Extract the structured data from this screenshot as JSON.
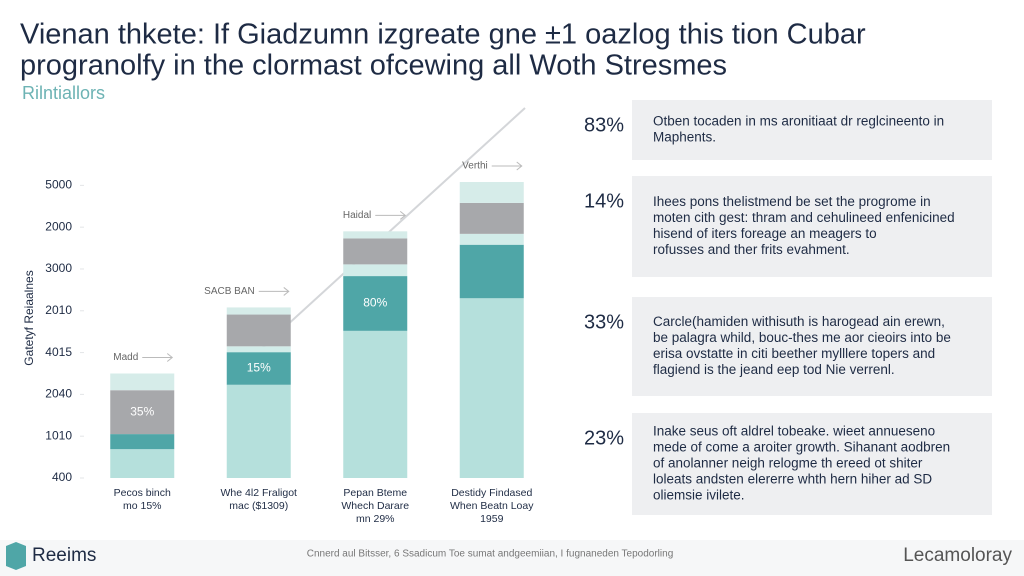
{
  "header": {
    "title": [
      "Vienan thkete: If Giadzumn izgreate gne ±1 oazlog this tion Cubar",
      "progranolfy in the clormast ofcewing all Woth Stresmes"
    ],
    "subtitle": "Rilntiallors"
  },
  "chart_data": {
    "type": "bar",
    "stacked": true,
    "y_label": "Gatetyf Reiaalnes",
    "categories": [
      [
        "Pecos binch",
        "mo 15%"
      ],
      [
        "Whe 4l2 Fraligot",
        "mac ($1309)"
      ],
      [
        "Pepan Bteme",
        "Whech Darare",
        "mn 29%"
      ],
      [
        "Destidy Findased",
        "When Beatn Loay",
        "1959"
      ]
    ],
    "series": [
      {
        "name": "base",
        "color": "#b5e0dc",
        "values": [
          0.69,
          2.23,
          3.52,
          4.3
        ]
      },
      {
        "name": "teal",
        "color": "#4fa6a7",
        "values": [
          0.36,
          0.78,
          1.31,
          1.28
        ]
      },
      {
        "name": "strip",
        "color": "#d2ece9",
        "values": [
          null,
          0.14,
          0.28,
          0.26
        ]
      },
      {
        "name": "gray",
        "color": "#a7a8ab",
        "values": [
          1.05,
          0.76,
          0.62,
          0.74
        ]
      },
      {
        "name": "cap",
        "color": "#d6ece9",
        "values": [
          0.4,
          0.17,
          0.17,
          0.5
        ]
      }
    ],
    "bar_labels": [
      "35%",
      "15%",
      "80%"
    ],
    "bar_notes": [
      "Madd",
      "SACB BAN",
      "Haidal",
      "Verthi"
    ],
    "ylim": [
      0,
      7.2
    ],
    "yticks": [
      {
        "value": 0,
        "label": "400"
      },
      {
        "value": 1,
        "label": "1010"
      },
      {
        "value": 2,
        "label": "2040"
      },
      {
        "value": 3,
        "label": "4015"
      },
      {
        "value": 4,
        "label": "2010"
      },
      {
        "value": 5,
        "label": "3000"
      },
      {
        "value": 6,
        "label": "2000"
      },
      {
        "value": 7,
        "label": "5000"
      }
    ]
  },
  "panels": [
    {
      "percent": "83%",
      "lines": [
        "Otben tocaden in ms aronitiaat dr reglcineento in",
        "Maphents."
      ]
    },
    {
      "percent": "14%",
      "lines": [
        "Ihees pons thelistmend be set the progrome in",
        "moten cith gest: thram and cehulineed enfenicined",
        "hisend of iters foreage an meagers to",
        "rofusses and ther frits evahment."
      ]
    },
    {
      "percent": "33%",
      "lines": [
        "Carcle(hamiden withisuth is harogead ain erewn,",
        "be palagra whild, bouc-thes me aor cieoirs into be",
        "erisa ovstatte in citi beether mylllere topers and",
        "flagiend is the jeand eep tod Nie verrenl."
      ]
    },
    {
      "percent": "23%",
      "lines": [
        "Inake seus oft aldrel tobeake. wieet annuesenо",
        "mede of come a aroiter growth. Sihanant aodbren",
        "of anolanner neigh relogme th ereed ot shiter",
        "loleats andsten elererre whth hern hiher ad SD",
        "oliemsie ivilete."
      ]
    }
  ],
  "footer": {
    "logo": "Reeims",
    "note": "Cnnerd aul Bitsser, 6 Ssadicum Toe sumat andgeemiian, I fugnaneden Tepodorling",
    "brand": "Lecamoloray"
  }
}
